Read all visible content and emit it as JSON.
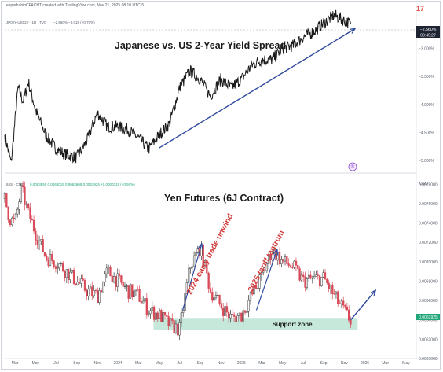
{
  "header": {
    "credit": "eaperhabibCFACHT created with TradingView.com, Nov 21, 2025 08:10 UTC-5",
    "logo_char": "17"
  },
  "colors": {
    "price_line": "#1a1a1a",
    "trend_arrow": "#2f4a9e",
    "candle_up": "#3a3a3a",
    "candle_down": "#d94a58",
    "support_fill": "#bfe5d6",
    "label_red": "#d13a3a",
    "axis_text": "#555d68",
    "price_badge_top": "#1f2433",
    "price_badge_bottom": "#21a67a"
  },
  "top_panel": {
    "symbol": "JP02Y-US02Y · 1D · TVC",
    "quote": "−2.560% −0.018 (+0.70%)",
    "price_badge": "−2.560%",
    "time_badge": "08:49:27",
    "marker": "®"
  },
  "bottom_panel": {
    "symbol": "6J1! · CME",
    "quote": "0.0063655 0.0064015 0.0063605 0.0063925 +0.0000315 (+0.50%)",
    "currency": "USD",
    "price_badge": "0.0063925",
    "support_label": "Support zone",
    "annotation_carry": "2024 carry trade unwind",
    "annotation_tariff": "2025 tariff tantrum"
  },
  "x_axis": {
    "ticks": [
      "Mar",
      "May",
      "Jul",
      "Sep",
      "Nov",
      "2024",
      "Mar",
      "May",
      "Jul",
      "Sep",
      "Nov",
      "2025",
      "Mar",
      "May",
      "Jul",
      "Sep",
      "Nov",
      "2026",
      "Mar",
      "May"
    ]
  },
  "chart_data": [
    {
      "type": "line",
      "title": "Japanese vs. US 2-Year Yield Spread",
      "ylabel": "",
      "y_ticks": [
        "−3.000%",
        "−3.500%",
        "−4.000%",
        "−4.500%",
        "−5.000%"
      ],
      "ylim": [
        -5.2,
        -2.3
      ],
      "x_range": [
        "2023-02",
        "2026-06"
      ],
      "series": [
        {
          "dates": [
            "2023-02",
            "2023-02-20",
            "2023-03-10",
            "2023-03-25",
            "2023-04-10",
            "2023-05",
            "2023-06",
            "2023-07",
            "2023-08",
            "2023-09",
            "2023-10",
            "2023-11",
            "2023-12",
            "2024-01",
            "2024-02",
            "2024-03",
            "2024-04",
            "2024-05",
            "2024-06",
            "2024-07",
            "2024-08",
            "2024-09",
            "2024-10",
            "2024-11",
            "2024-12",
            "2025-01",
            "2025-02",
            "2025-03",
            "2025-04",
            "2025-05",
            "2025-06",
            "2025-07",
            "2025-08",
            "2025-09",
            "2025-10",
            "2025-11-20"
          ],
          "values": [
            -4.55,
            -5.05,
            -3.7,
            -3.95,
            -3.6,
            -4.1,
            -4.55,
            -4.8,
            -4.9,
            -4.95,
            -4.65,
            -4.15,
            -4.4,
            -4.4,
            -4.45,
            -4.6,
            -4.8,
            -4.55,
            -4.35,
            -3.7,
            -3.4,
            -3.55,
            -3.85,
            -3.55,
            -3.7,
            -3.55,
            -3.3,
            -3.2,
            -3.2,
            -3.0,
            -2.95,
            -2.8,
            -2.7,
            -2.55,
            -2.4,
            -2.56
          ]
        }
      ],
      "trend_arrow": {
        "start": [
          "2024-05",
          -4.78
        ],
        "end": [
          "2025-12",
          -2.65
        ]
      }
    },
    {
      "type": "candlestick",
      "title": "Yen Futures (6J Contract)",
      "ylabel": "USD",
      "y_ticks": [
        "0.0078000",
        "0.0076000",
        "0.0074000",
        "0.0072000",
        "0.0070000",
        "0.0068000",
        "0.0066000",
        "0.0064000",
        "0.0062000",
        "0.0060000"
      ],
      "ylim": [
        0.006,
        0.0079
      ],
      "x_range": [
        "2023-02",
        "2026-06"
      ],
      "series": [
        {
          "name": "close",
          "dates": [
            "2023-02",
            "2023-02-15",
            "2023-03-01",
            "2023-03-20",
            "2023-04-10",
            "2023-05",
            "2023-06",
            "2023-07",
            "2023-08",
            "2023-09",
            "2023-10",
            "2023-11",
            "2023-12",
            "2024-01",
            "2024-02",
            "2024-03",
            "2024-04",
            "2024-05",
            "2024-06",
            "2024-07",
            "2024-08",
            "2024-09",
            "2024-10",
            "2024-11",
            "2024-12",
            "2025-01",
            "2025-02",
            "2025-03",
            "2025-04",
            "2025-05",
            "2025-06",
            "2025-07",
            "2025-08",
            "2025-09",
            "2025-10",
            "2025-11-20"
          ],
          "values": [
            0.00765,
            0.00745,
            0.0074,
            0.00775,
            0.0075,
            0.0073,
            0.00705,
            0.007,
            0.0069,
            0.0068,
            0.0067,
            0.00665,
            0.0069,
            0.0068,
            0.0067,
            0.00665,
            0.0065,
            0.00645,
            0.00635,
            0.0063,
            0.00695,
            0.00715,
            0.0067,
            0.00655,
            0.00642,
            0.00645,
            0.00665,
            0.00685,
            0.00712,
            0.007,
            0.00695,
            0.0068,
            0.00682,
            0.00683,
            0.00665,
            0.00639
          ]
        }
      ],
      "support_zone": [
        0.0063,
        0.00642
      ],
      "projection_arrow": {
        "start": [
          "2025-11-20",
          0.0064
        ],
        "end": [
          "2026-02",
          0.0067
        ]
      },
      "annotation_arrows": [
        {
          "start": [
            "2024-07-10",
            0.0065
          ],
          "end": [
            "2024-09-05",
            0.00718
          ]
        },
        {
          "start": [
            "2025-02-15",
            0.0065
          ],
          "end": [
            "2025-04-15",
            0.00712
          ]
        }
      ]
    }
  ]
}
